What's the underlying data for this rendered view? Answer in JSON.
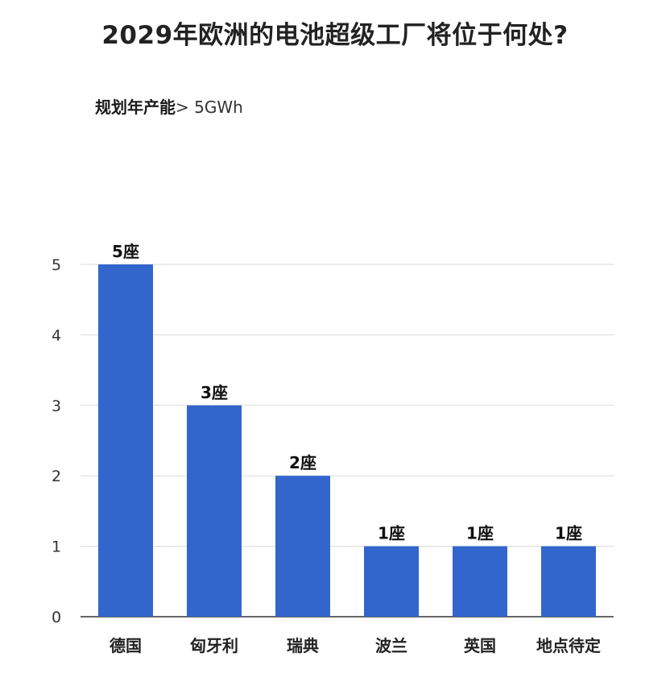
{
  "chart_data": {
    "type": "bar",
    "title": "2029年欧洲的电池超级工厂将位于何处?",
    "subtitle_bold": "规划年产能",
    "subtitle_normal": "> 5GWh",
    "categories": [
      "德国",
      "匈牙利",
      "瑞典",
      "波兰",
      "英国",
      "地点待定"
    ],
    "values": [
      5,
      3,
      2,
      1,
      1,
      1
    ],
    "data_labels": [
      "5座",
      "3座",
      "2座",
      "1座",
      "1座",
      "1座"
    ],
    "yticks": [
      0,
      1,
      2,
      3,
      4,
      5
    ],
    "ylim": [
      0,
      5
    ],
    "xlabel": "",
    "ylabel": "",
    "grid": true,
    "legend": "none",
    "colors": {
      "bar": "#3366cc",
      "grid": "#d9d9d9",
      "axis": "#333333"
    }
  }
}
